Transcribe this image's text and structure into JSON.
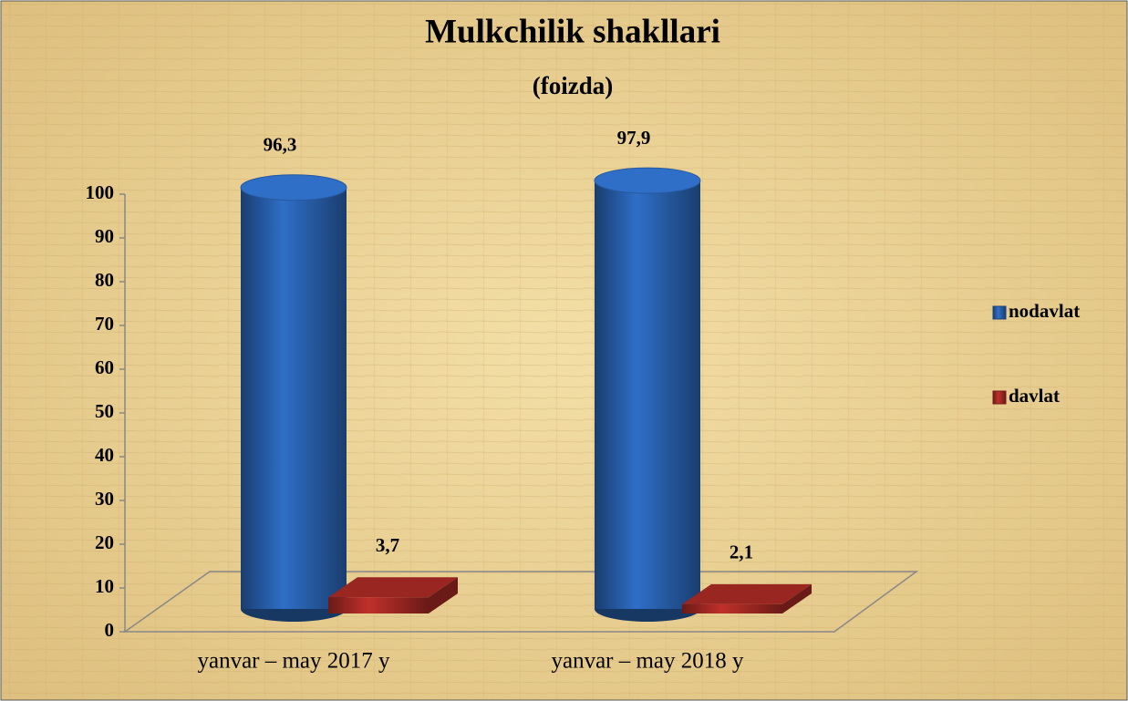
{
  "chart_data": {
    "type": "bar3d",
    "title": "Mulkchilik shakllari",
    "subtitle": "(foizda)",
    "categories": [
      "yanvar – may 2017 y",
      "yanvar – may 2018 y"
    ],
    "series": [
      {
        "name": "nodavlat",
        "color": "#2f6fc8",
        "shape": "cylinder",
        "values": [
          96.3,
          97.9
        ],
        "value_labels": [
          "96,3",
          "97,9"
        ]
      },
      {
        "name": "davlat",
        "color": "#c0302a",
        "shape": "box",
        "values": [
          3.7,
          2.1
        ],
        "value_labels": [
          "3,7",
          "2,1"
        ]
      }
    ],
    "ylim": [
      0,
      100
    ],
    "yticks": [
      0,
      10,
      20,
      30,
      40,
      50,
      60,
      70,
      80,
      90,
      100
    ],
    "legend": "right"
  }
}
